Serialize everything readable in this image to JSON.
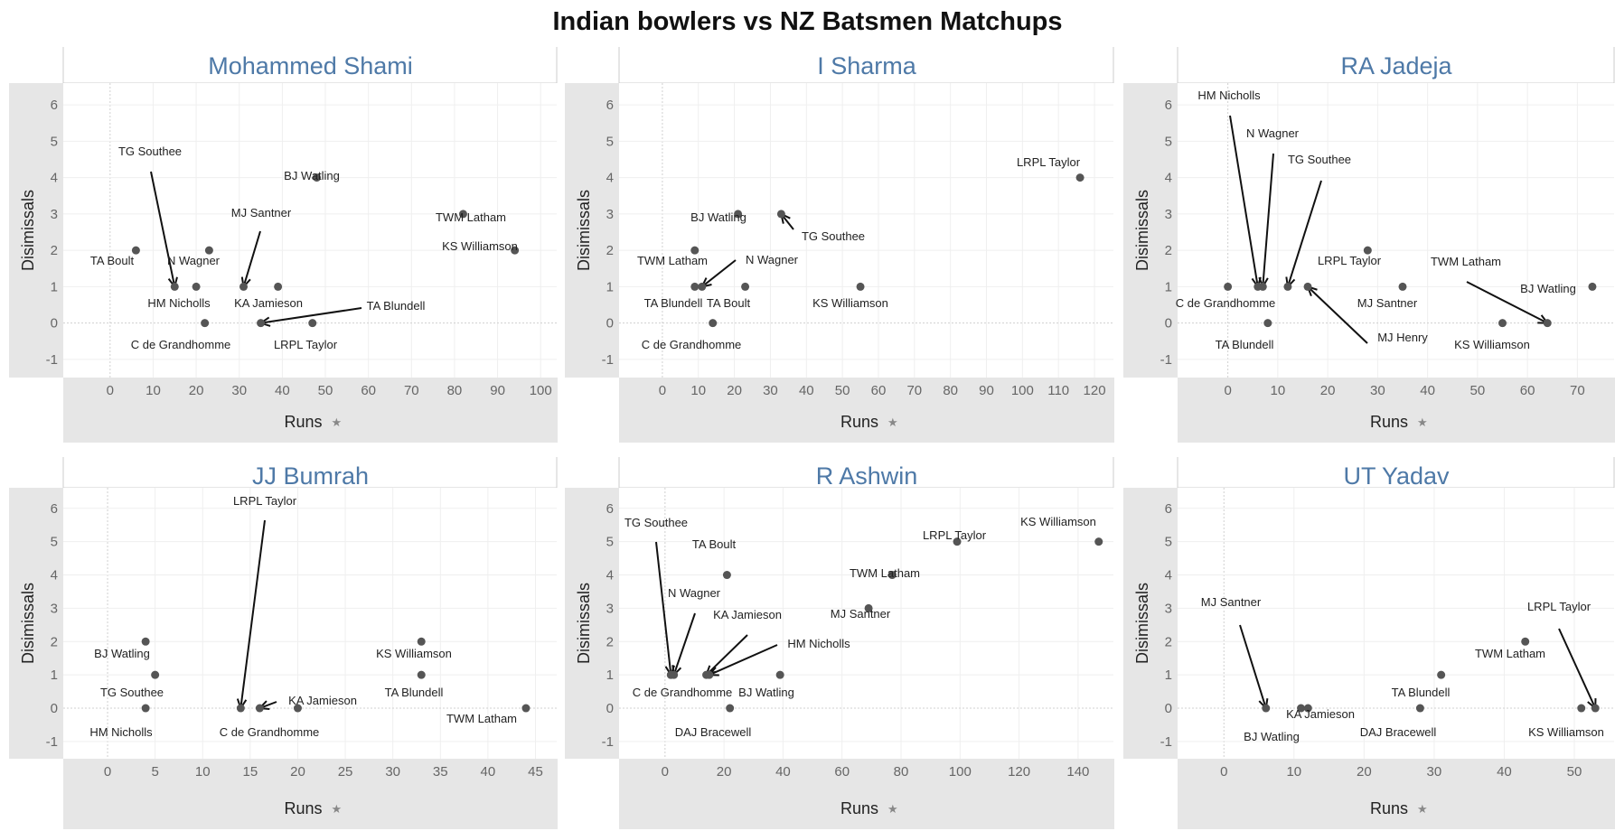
{
  "title": "Indian bowlers vs NZ Batsmen Matchups",
  "chart_data": [
    {
      "type": "scatter",
      "title": "Mohammed Shami",
      "xlabel": "Runs",
      "ylabel": "Disimissals",
      "xlim": [
        -5,
        101
      ],
      "ylim": [
        -1.3,
        6.4
      ],
      "xticks": [
        0,
        10,
        20,
        30,
        40,
        50,
        60,
        70,
        80,
        90,
        100
      ],
      "yticks": [
        -1,
        0,
        1,
        2,
        3,
        4,
        5,
        6
      ],
      "points": [
        {
          "name": "TA Boult",
          "x": 6,
          "y": 2
        },
        {
          "name": "TG Southee",
          "x": 15,
          "y": 1
        },
        {
          "name": "HM Nicholls",
          "x": 20,
          "y": 1
        },
        {
          "name": "N Wagner",
          "x": 23,
          "y": 2
        },
        {
          "name": "C de Grandhomme",
          "x": 22,
          "y": 0
        },
        {
          "name": "MJ Santner",
          "x": 31,
          "y": 1
        },
        {
          "name": "TA Blundell",
          "x": 35,
          "y": 0
        },
        {
          "name": "KA Jamieson",
          "x": 39,
          "y": 1
        },
        {
          "name": "LRPL Taylor",
          "x": 47,
          "y": 0
        },
        {
          "name": "BJ Watling",
          "x": 48,
          "y": 4
        },
        {
          "name": "TWM Latham",
          "x": 82,
          "y": 3
        },
        {
          "name": "KS Williamson",
          "x": 94,
          "y": 2
        }
      ]
    },
    {
      "type": "scatter",
      "title": "I Sharma",
      "xlabel": "Runs",
      "ylabel": "Disimissals",
      "xlim": [
        -5,
        122
      ],
      "ylim": [
        -1.3,
        6.4
      ],
      "xticks": [
        0,
        10,
        20,
        30,
        40,
        50,
        60,
        70,
        80,
        90,
        100,
        110,
        120
      ],
      "yticks": [
        -1,
        0,
        1,
        2,
        3,
        4,
        5,
        6
      ],
      "points": [
        {
          "name": "TWM Latham",
          "x": 9,
          "y": 2
        },
        {
          "name": "TA Blundell",
          "x": 9,
          "y": 1
        },
        {
          "name": "N Wagner",
          "x": 11,
          "y": 1
        },
        {
          "name": "C de Grandhomme",
          "x": 14,
          "y": 0
        },
        {
          "name": "BJ Watling",
          "x": 21,
          "y": 3
        },
        {
          "name": "TA Boult",
          "x": 23,
          "y": 1
        },
        {
          "name": "TG Southee",
          "x": 33,
          "y": 3
        },
        {
          "name": "KS Williamson",
          "x": 55,
          "y": 1
        },
        {
          "name": "LRPL Taylor",
          "x": 116,
          "y": 4
        }
      ]
    },
    {
      "type": "scatter",
      "title": "RA Jadeja",
      "xlabel": "Runs",
      "ylabel": "Disimissals",
      "xlim": [
        -5,
        75
      ],
      "ylim": [
        -1.3,
        6.4
      ],
      "xticks": [
        0,
        10,
        20,
        30,
        40,
        50,
        60,
        70
      ],
      "yticks": [
        -1,
        0,
        1,
        2,
        3,
        4,
        5,
        6
      ],
      "points": [
        {
          "name": "C de Grandhomme",
          "x": 0,
          "y": 1
        },
        {
          "name": "HM Nicholls",
          "x": 6,
          "y": 1
        },
        {
          "name": "N Wagner",
          "x": 7,
          "y": 1
        },
        {
          "name": "TA Blundell",
          "x": 8,
          "y": 0
        },
        {
          "name": "TG Southee",
          "x": 12,
          "y": 1
        },
        {
          "name": "MJ Henry",
          "x": 16,
          "y": 1
        },
        {
          "name": "LRPL Taylor",
          "x": 28,
          "y": 2
        },
        {
          "name": "MJ Santner",
          "x": 35,
          "y": 1
        },
        {
          "name": "KS Williamson",
          "x": 55,
          "y": 0
        },
        {
          "name": "TWM Latham",
          "x": 64,
          "y": 0
        },
        {
          "name": "BJ Watling",
          "x": 73,
          "y": 1
        }
      ]
    },
    {
      "type": "scatter",
      "title": "JJ Bumrah",
      "xlabel": "Runs",
      "ylabel": "Disimissals",
      "xlim": [
        -2,
        46
      ],
      "ylim": [
        -1.3,
        6.4
      ],
      "xticks": [
        0,
        5,
        10,
        15,
        20,
        25,
        30,
        35,
        40,
        45
      ],
      "yticks": [
        -1,
        0,
        1,
        2,
        3,
        4,
        5,
        6
      ],
      "points": [
        {
          "name": "BJ Watling",
          "x": 4,
          "y": 2
        },
        {
          "name": "HM Nicholls",
          "x": 4,
          "y": 0
        },
        {
          "name": "TG Southee",
          "x": 5,
          "y": 1
        },
        {
          "name": "LRPL Taylor",
          "x": 14,
          "y": 0
        },
        {
          "name": "KA Jamieson",
          "x": 16,
          "y": 0
        },
        {
          "name": "C de Grandhomme",
          "x": 20,
          "y": 0
        },
        {
          "name": "KS Williamson",
          "x": 33,
          "y": 2
        },
        {
          "name": "TA Blundell",
          "x": 33,
          "y": 1
        },
        {
          "name": "TWM Latham",
          "x": 44,
          "y": 0
        }
      ]
    },
    {
      "type": "scatter",
      "title": "R Ashwin",
      "xlabel": "Runs",
      "ylabel": "Disimissals",
      "xlim": [
        -7,
        148
      ],
      "ylim": [
        -1.3,
        6.4
      ],
      "xticks": [
        0,
        20,
        40,
        60,
        80,
        100,
        120,
        140
      ],
      "yticks": [
        -1,
        0,
        1,
        2,
        3,
        4,
        5,
        6
      ],
      "points": [
        {
          "name": "TG Southee",
          "x": 2,
          "y": 1
        },
        {
          "name": "N Wagner",
          "x": 3,
          "y": 1
        },
        {
          "name": "C de Grandhomme",
          "x": 2,
          "y": 1
        },
        {
          "name": "KA Jamieson",
          "x": 14,
          "y": 1
        },
        {
          "name": "HM Nicholls",
          "x": 15,
          "y": 1
        },
        {
          "name": "TA Boult",
          "x": 21,
          "y": 4
        },
        {
          "name": "DAJ Bracewell",
          "x": 22,
          "y": 0
        },
        {
          "name": "BJ Watling",
          "x": 39,
          "y": 1
        },
        {
          "name": "MJ Santner",
          "x": 69,
          "y": 3
        },
        {
          "name": "TWM Latham",
          "x": 77,
          "y": 4
        },
        {
          "name": "LRPL Taylor",
          "x": 99,
          "y": 5
        },
        {
          "name": "KS Williamson",
          "x": 147,
          "y": 5
        }
      ]
    },
    {
      "type": "scatter",
      "title": "UT Yadav",
      "xlabel": "Runs",
      "ylabel": "Disimissals",
      "xlim": [
        -3,
        54
      ],
      "ylim": [
        -1.3,
        6.4
      ],
      "xticks": [
        0,
        10,
        20,
        30,
        40,
        50
      ],
      "yticks": [
        -1,
        0,
        1,
        2,
        3,
        4,
        5,
        6
      ],
      "points": [
        {
          "name": "MJ Santner",
          "x": 6,
          "y": 0
        },
        {
          "name": "BJ Watling",
          "x": 11,
          "y": 0
        },
        {
          "name": "KA Jamieson",
          "x": 12,
          "y": 0
        },
        {
          "name": "DAJ Bracewell",
          "x": 28,
          "y": 0
        },
        {
          "name": "TA Blundell",
          "x": 31,
          "y": 1
        },
        {
          "name": "TWM Latham",
          "x": 43,
          "y": 2
        },
        {
          "name": "LRPL Taylor",
          "x": 53,
          "y": 0
        },
        {
          "name": "KS Williamson",
          "x": 51,
          "y": 0
        }
      ]
    }
  ]
}
